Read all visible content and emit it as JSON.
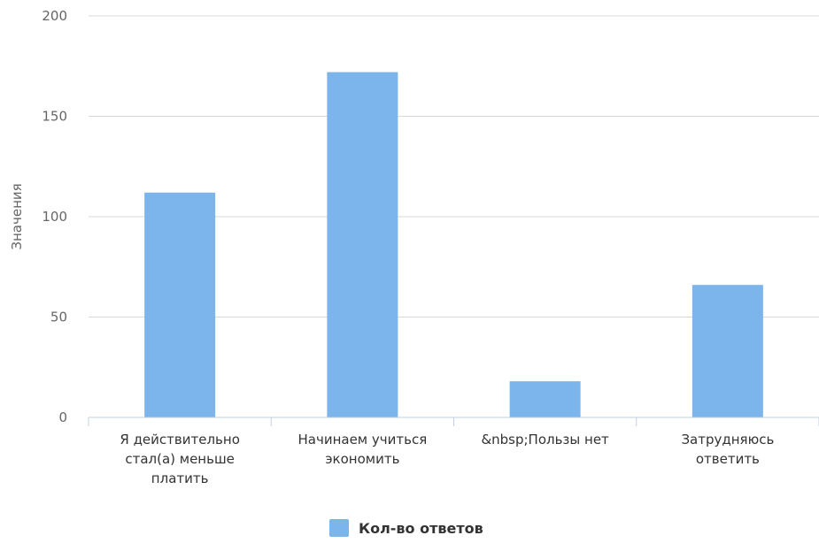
{
  "chart_data": {
    "type": "bar",
    "categories": [
      [
        "Я действительно",
        "стал(а) меньше",
        "платить"
      ],
      [
        "Начинаем учиться",
        "экономить"
      ],
      [
        "&nbsp;Пользы нет"
      ],
      [
        "Затрудняюсь",
        "ответить"
      ]
    ],
    "series": [
      {
        "name": "Кол-во ответов",
        "values": [
          112,
          172,
          18,
          66
        ],
        "color": "#7cb5ec"
      }
    ],
    "ylabel": "Значения",
    "ylim": [
      0,
      200
    ],
    "yticks": [
      0,
      50,
      100,
      150,
      200
    ],
    "grid": true,
    "legend_position": "bottom-center"
  }
}
